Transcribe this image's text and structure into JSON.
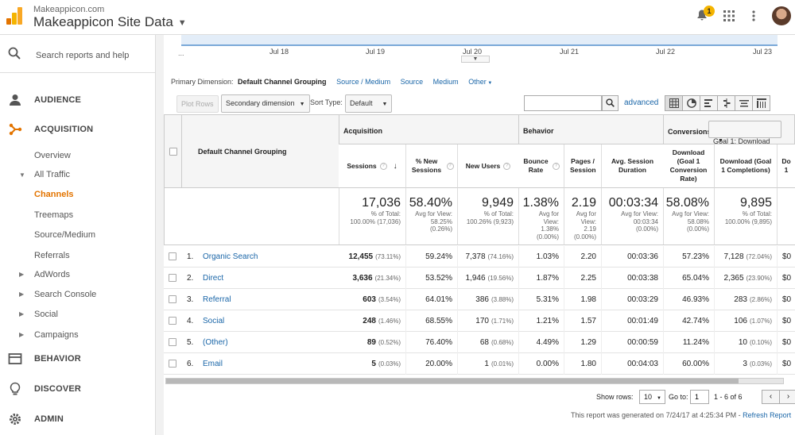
{
  "header": {
    "account": "Makeappicon.com",
    "property": "Makeappicon Site Data",
    "notifications": "1"
  },
  "sidebar": {
    "search_label": "Search reports and help",
    "sections": [
      "AUDIENCE",
      "ACQUISITION",
      "BEHAVIOR",
      "DISCOVER",
      "ADMIN"
    ],
    "acquisition_items": [
      "Overview",
      "All Traffic",
      "Channels",
      "Treemaps",
      "Source/Medium",
      "Referrals",
      "AdWords",
      "Search Console",
      "Social",
      "Campaigns"
    ]
  },
  "timeline": {
    "start": "...",
    "dates": [
      "Jul 18",
      "Jul 19",
      "Jul 20",
      "Jul 21",
      "Jul 22",
      "Jul 23"
    ]
  },
  "primary_dimension": {
    "label": "Primary Dimension:",
    "selected": "Default Channel Grouping",
    "options": [
      "Source / Medium",
      "Source",
      "Medium",
      "Other"
    ]
  },
  "toolbar": {
    "plot_rows": "Plot Rows",
    "secondary_dimension": "Secondary dimension",
    "sort_type_label": "Sort Type:",
    "sort_type": "Default",
    "search_value": "",
    "advanced": "advanced"
  },
  "table": {
    "dimension_header": "Default Channel Grouping",
    "groups": {
      "acquisition": "Acquisition",
      "behavior": "Behavior",
      "conversions": "Conversions",
      "goal_select": "Goal 1: Download"
    },
    "columns": [
      "Sessions",
      "% New Sessions",
      "New Users",
      "Bounce Rate",
      "Pages / Session",
      "Avg. Session Duration",
      "Download (Goal 1 Conversion Rate)",
      "Download (Goal 1 Completions)",
      "Do 1"
    ],
    "totals": [
      {
        "value": "17,036",
        "sub1": "% of Total:",
        "sub2": "100.00% (17,036)"
      },
      {
        "value": "58.40%",
        "sub1": "Avg for View:",
        "sub2": "58.25%",
        "sub3": "(0.26%)"
      },
      {
        "value": "9,949",
        "sub1": "% of Total:",
        "sub2": "100.26% (9,923)"
      },
      {
        "value": "1.38%",
        "sub1": "Avg for",
        "sub2": "View:",
        "sub3": "1.38%",
        "sub4": "(0.00%)"
      },
      {
        "value": "2.19",
        "sub1": "Avg for",
        "sub2": "View:",
        "sub3": "2.19",
        "sub4": "(0.00%)"
      },
      {
        "value": "00:03:34",
        "sub1": "Avg for View:",
        "sub2": "00:03:34",
        "sub3": "(0.00%)"
      },
      {
        "value": "58.08%",
        "sub1": "Avg for View:",
        "sub2": "58.08%",
        "sub3": "(0.00%)"
      },
      {
        "value": "9,895",
        "sub1": "% of Total:",
        "sub2": "100.00% (9,895)"
      }
    ],
    "rows": [
      {
        "idx": "1.",
        "name": "Organic Search",
        "sessions": "12,455",
        "sessions_pct": "(73.11%)",
        "new_sess": "59.24%",
        "new_users": "7,378",
        "new_users_pct": "(74.16%)",
        "bounce": "1.03%",
        "pages": "2.20",
        "duration": "00:03:36",
        "conv_rate": "57.23%",
        "completions": "7,128",
        "completions_pct": "(72.04%)",
        "extra": "$0"
      },
      {
        "idx": "2.",
        "name": "Direct",
        "sessions": "3,636",
        "sessions_pct": "(21.34%)",
        "new_sess": "53.52%",
        "new_users": "1,946",
        "new_users_pct": "(19.56%)",
        "bounce": "1.87%",
        "pages": "2.25",
        "duration": "00:03:38",
        "conv_rate": "65.04%",
        "completions": "2,365",
        "completions_pct": "(23.90%)",
        "extra": "$0"
      },
      {
        "idx": "3.",
        "name": "Referral",
        "sessions": "603",
        "sessions_pct": "(3.54%)",
        "new_sess": "64.01%",
        "new_users": "386",
        "new_users_pct": "(3.88%)",
        "bounce": "5.31%",
        "pages": "1.98",
        "duration": "00:03:29",
        "conv_rate": "46.93%",
        "completions": "283",
        "completions_pct": "(2.86%)",
        "extra": "$0"
      },
      {
        "idx": "4.",
        "name": "Social",
        "sessions": "248",
        "sessions_pct": "(1.46%)",
        "new_sess": "68.55%",
        "new_users": "170",
        "new_users_pct": "(1.71%)",
        "bounce": "1.21%",
        "pages": "1.57",
        "duration": "00:01:49",
        "conv_rate": "42.74%",
        "completions": "106",
        "completions_pct": "(1.07%)",
        "extra": "$0"
      },
      {
        "idx": "5.",
        "name": "(Other)",
        "sessions": "89",
        "sessions_pct": "(0.52%)",
        "new_sess": "76.40%",
        "new_users": "68",
        "new_users_pct": "(0.68%)",
        "bounce": "4.49%",
        "pages": "1.29",
        "duration": "00:00:59",
        "conv_rate": "11.24%",
        "completions": "10",
        "completions_pct": "(0.10%)",
        "extra": "$0"
      },
      {
        "idx": "6.",
        "name": "Email",
        "sessions": "5",
        "sessions_pct": "(0.03%)",
        "new_sess": "20.00%",
        "new_users": "1",
        "new_users_pct": "(0.01%)",
        "bounce": "0.00%",
        "pages": "1.80",
        "duration": "00:04:03",
        "conv_rate": "60.00%",
        "completions": "3",
        "completions_pct": "(0.03%)",
        "extra": "$0"
      }
    ]
  },
  "footer": {
    "show_rows_label": "Show rows:",
    "show_rows": "10",
    "goto_label": "Go to:",
    "goto": "1",
    "range": "1 - 6 of 6",
    "prev": "‹",
    "next": "›",
    "generated": "This report was generated on 7/24/17 at 4:25:34 PM -",
    "refresh": "Refresh Report"
  },
  "colors": {
    "accent": "#e37400",
    "link": "#1a66a8"
  }
}
